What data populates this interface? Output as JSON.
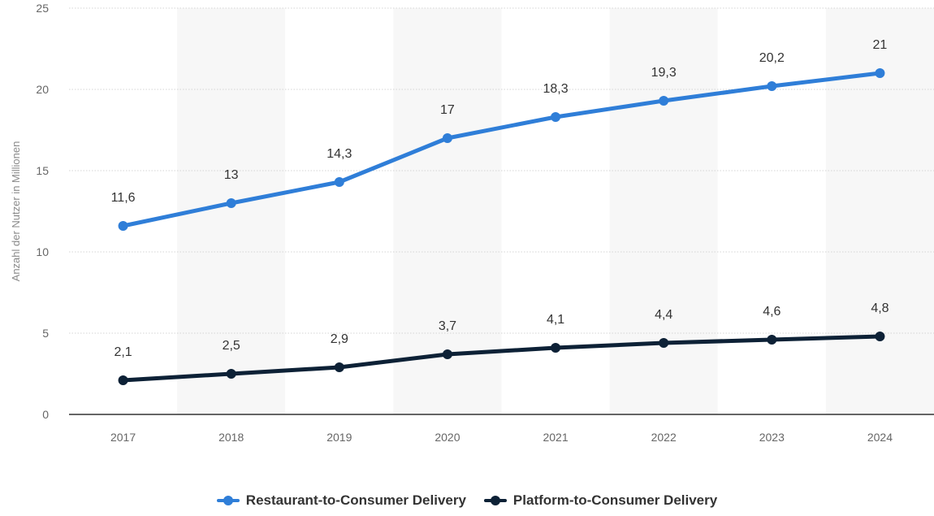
{
  "chart_data": {
    "type": "line",
    "categories": [
      "2017",
      "2018",
      "2019",
      "2020",
      "2021",
      "2022",
      "2023",
      "2024"
    ],
    "series": [
      {
        "name": "Restaurant-to-Consumer Delivery",
        "values": [
          11.6,
          13,
          14.3,
          17,
          18.3,
          19.3,
          20.2,
          21
        ],
        "labels": [
          "11,6",
          "13",
          "14,3",
          "17",
          "18,3",
          "19,3",
          "20,2",
          "21"
        ],
        "color": "#2f7ed8"
      },
      {
        "name": "Platform-to-Consumer Delivery",
        "values": [
          2.1,
          2.5,
          2.9,
          3.7,
          4.1,
          4.4,
          4.6,
          4.8
        ],
        "labels": [
          "2,1",
          "2,5",
          "2,9",
          "3,7",
          "4,1",
          "4,4",
          "4,6",
          "4,8"
        ],
        "color": "#0d2136"
      }
    ],
    "ylabel": "Anzahl der Nutzer in Millionen",
    "ylim": [
      0,
      25
    ],
    "yticks": [
      0,
      5,
      10,
      15,
      20,
      25
    ],
    "grid": true,
    "legend_position": "bottom"
  }
}
